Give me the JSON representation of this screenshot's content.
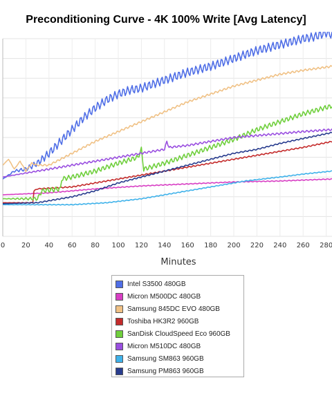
{
  "title": "Preconditioning Curve - 4K 100% Write [Avg Latency]",
  "chart_data": {
    "type": "line",
    "title": "Preconditioning Curve - 4K 100% Write [Avg Latency]",
    "xlabel": "Minutes",
    "ylabel": "",
    "xlim": [
      0,
      285
    ],
    "ylim": [
      0,
      10
    ],
    "x_ticks": [
      "0",
      "20",
      "40",
      "60",
      "80",
      "100",
      "120",
      "140",
      "160",
      "180",
      "200",
      "220",
      "240",
      "260",
      "280"
    ],
    "grid": true,
    "legend_position": "bottom",
    "series": [
      {
        "name": "Intel S3500 480GB",
        "color": "#4f6ee6",
        "wiggle": 0.22,
        "points": [
          [
            0,
            2.9
          ],
          [
            10,
            3.3
          ],
          [
            20,
            3.4
          ],
          [
            30,
            3.7
          ],
          [
            40,
            4.2
          ],
          [
            50,
            4.8
          ],
          [
            60,
            5.4
          ],
          [
            70,
            6.0
          ],
          [
            80,
            6.5
          ],
          [
            90,
            6.9
          ],
          [
            100,
            7.2
          ],
          [
            110,
            7.4
          ],
          [
            120,
            7.5
          ],
          [
            140,
            7.9
          ],
          [
            160,
            8.3
          ],
          [
            180,
            8.6
          ],
          [
            200,
            9.0
          ],
          [
            220,
            9.4
          ],
          [
            240,
            9.7
          ],
          [
            260,
            10.0
          ],
          [
            270,
            10.1
          ],
          [
            280,
            10.3
          ],
          [
            285,
            10.2
          ]
        ]
      },
      {
        "name": "Micron M500DC 480GB",
        "color": "#d83fc4",
        "wiggle": 0.02,
        "points": [
          [
            0,
            2.1
          ],
          [
            40,
            2.2
          ],
          [
            80,
            2.4
          ],
          [
            120,
            2.55
          ],
          [
            160,
            2.65
          ],
          [
            200,
            2.75
          ],
          [
            240,
            2.8
          ],
          [
            285,
            2.9
          ]
        ]
      },
      {
        "name": "Samsung 845DC EVO 480GB",
        "color": "#f0c185",
        "wiggle": 0.05,
        "points": [
          [
            0,
            3.6
          ],
          [
            5,
            3.9
          ],
          [
            10,
            3.4
          ],
          [
            15,
            3.8
          ],
          [
            20,
            3.3
          ],
          [
            25,
            3.7
          ],
          [
            30,
            3.6
          ],
          [
            40,
            3.6
          ],
          [
            60,
            4.2
          ],
          [
            80,
            4.8
          ],
          [
            100,
            5.3
          ],
          [
            120,
            5.8
          ],
          [
            140,
            6.3
          ],
          [
            160,
            6.8
          ],
          [
            180,
            7.2
          ],
          [
            200,
            7.6
          ],
          [
            220,
            7.9
          ],
          [
            240,
            8.2
          ],
          [
            260,
            8.4
          ],
          [
            285,
            8.6
          ]
        ]
      },
      {
        "name": "Toshiba HK3R2 960GB",
        "color": "#c42b2b",
        "wiggle": 0.03,
        "points": [
          [
            0,
            1.7
          ],
          [
            26,
            1.7
          ],
          [
            27,
            2.3
          ],
          [
            30,
            2.4
          ],
          [
            60,
            2.5
          ],
          [
            80,
            2.7
          ],
          [
            100,
            2.9
          ],
          [
            120,
            3.1
          ],
          [
            140,
            3.3
          ],
          [
            160,
            3.5
          ],
          [
            180,
            3.7
          ],
          [
            200,
            3.9
          ],
          [
            220,
            4.1
          ],
          [
            240,
            4.3
          ],
          [
            260,
            4.5
          ],
          [
            285,
            4.8
          ]
        ]
      },
      {
        "name": "SanDisk CloudSpeed Eco 960GB",
        "color": "#6fcf3c",
        "wiggle": 0.12,
        "points": [
          [
            0,
            1.9
          ],
          [
            30,
            1.9
          ],
          [
            34,
            2.3
          ],
          [
            50,
            2.4
          ],
          [
            51,
            2.9
          ],
          [
            60,
            3.0
          ],
          [
            80,
            3.3
          ],
          [
            100,
            3.7
          ],
          [
            117,
            4.0
          ],
          [
            120,
            4.4
          ],
          [
            122,
            3.4
          ],
          [
            140,
            3.7
          ],
          [
            160,
            4.1
          ],
          [
            180,
            4.5
          ],
          [
            200,
            4.9
          ],
          [
            220,
            5.4
          ],
          [
            240,
            5.8
          ],
          [
            260,
            6.2
          ],
          [
            285,
            6.6
          ]
        ]
      },
      {
        "name": "Micron M510DC 480GB",
        "color": "#9a4fe0",
        "wiggle": 0.05,
        "points": [
          [
            0,
            3.0
          ],
          [
            30,
            3.3
          ],
          [
            60,
            3.6
          ],
          [
            90,
            3.9
          ],
          [
            120,
            4.2
          ],
          [
            140,
            4.4
          ],
          [
            142,
            4.8
          ],
          [
            144,
            4.5
          ],
          [
            160,
            4.6
          ],
          [
            180,
            4.8
          ],
          [
            200,
            5.0
          ],
          [
            220,
            5.1
          ],
          [
            240,
            5.2
          ],
          [
            260,
            5.3
          ],
          [
            285,
            5.4
          ]
        ]
      },
      {
        "name": "Samsung SM863 960GB",
        "color": "#3fb2ea",
        "wiggle": 0.02,
        "points": [
          [
            0,
            1.6
          ],
          [
            60,
            1.6
          ],
          [
            90,
            1.7
          ],
          [
            120,
            1.9
          ],
          [
            150,
            2.2
          ],
          [
            180,
            2.5
          ],
          [
            210,
            2.8
          ],
          [
            240,
            3.0
          ],
          [
            260,
            3.15
          ],
          [
            285,
            3.3
          ]
        ]
      },
      {
        "name": "Samsung PM863 960GB",
        "color": "#283c8e",
        "wiggle": 0.03,
        "points": [
          [
            0,
            1.65
          ],
          [
            30,
            1.7
          ],
          [
            60,
            2.0
          ],
          [
            80,
            2.3
          ],
          [
            100,
            2.7
          ],
          [
            120,
            3.0
          ],
          [
            140,
            3.3
          ],
          [
            160,
            3.6
          ],
          [
            180,
            3.9
          ],
          [
            200,
            4.2
          ],
          [
            220,
            4.4
          ],
          [
            240,
            4.7
          ],
          [
            260,
            4.95
          ],
          [
            285,
            5.25
          ]
        ]
      }
    ]
  }
}
